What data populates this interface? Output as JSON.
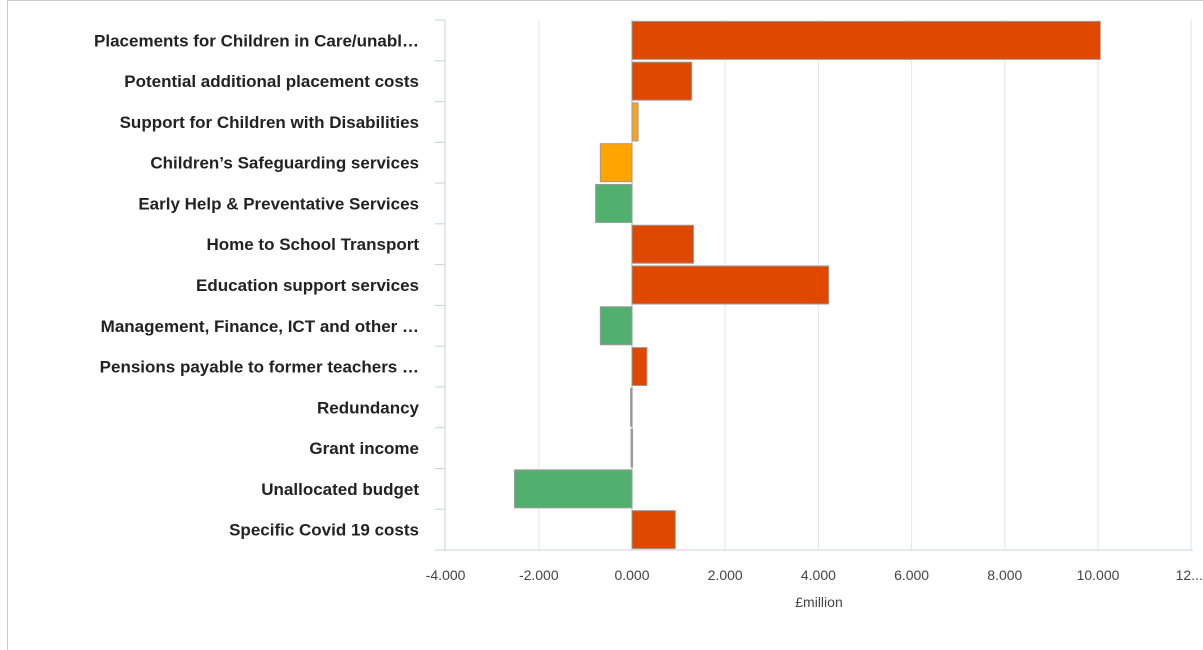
{
  "chart_data": {
    "type": "bar",
    "orientation": "horizontal",
    "categories": [
      "Placements for Children in Care/unabl…",
      "Potential additional placement costs",
      "Support for Children with Disabilities",
      "Children’s Safeguarding services",
      "Early Help & Preventative Services",
      "Home to School Transport",
      "Education support services",
      "Management, Finance, ICT and other …",
      "Pensions payable to former teachers …",
      "Redundancy",
      "Grant income",
      "Unallocated budget",
      "Specific Covid 19 costs"
    ],
    "values": [
      10.05,
      1.28,
      0.13,
      -0.68,
      -0.78,
      1.32,
      4.22,
      -0.68,
      0.32,
      -0.03,
      -0.02,
      -2.52,
      0.93
    ],
    "colors": [
      "#e04800",
      "#e04800",
      "#f5a623",
      "#ffa500",
      "#52b06f",
      "#e04800",
      "#e04800",
      "#52b06f",
      "#e04800",
      "#999999",
      "#999999",
      "#52b06f",
      "#e04800"
    ],
    "xlabel": "£million",
    "xlim": [
      -4,
      12
    ],
    "xticks": [
      "-4.000",
      "-2.000",
      "0.000",
      "2.000",
      "4.000",
      "6.000",
      "8.000",
      "10.000",
      "12...."
    ],
    "grid": "vertical"
  }
}
